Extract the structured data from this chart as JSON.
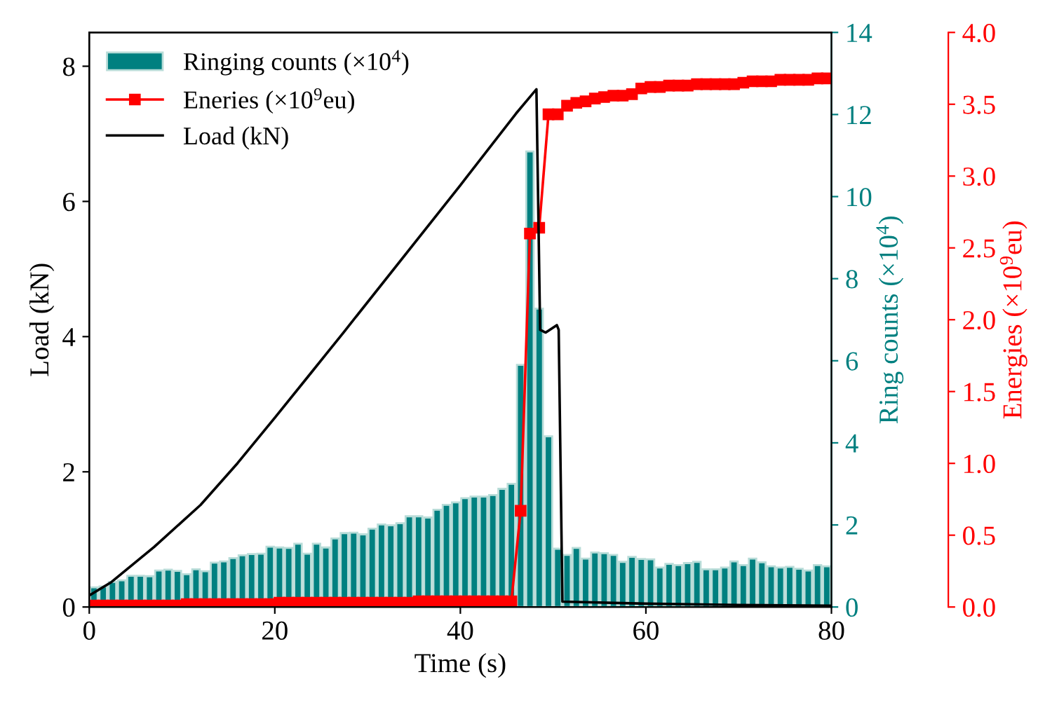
{
  "chart_data": {
    "type": "bar",
    "xlabel": "Time (s)",
    "ylabel": "Load (kN)",
    "y2label": "Ring counts (×10$^{4}$)",
    "y3label": "Energies (×10$^{9}$eu)",
    "xlim": [
      0,
      80
    ],
    "xticks": [
      0,
      20,
      40,
      60,
      80
    ],
    "ylim": [
      0,
      8.5
    ],
    "yticks": [
      0,
      2,
      4,
      6,
      8
    ],
    "y2lim": [
      0,
      14
    ],
    "y2ticks": [
      0,
      2,
      4,
      6,
      8,
      10,
      12,
      14
    ],
    "y3lim": [
      0,
      4
    ],
    "y3ticks": [
      {
        "value": 0,
        "label": "0.0"
      },
      {
        "value": 0.5,
        "label": "0.5"
      },
      {
        "value": 1,
        "label": "1.0"
      },
      {
        "value": 1.5,
        "label": "1.5"
      },
      {
        "value": 2,
        "label": "2.0"
      },
      {
        "value": 2.5,
        "label": "2.5"
      },
      {
        "value": 3,
        "label": "3.0"
      },
      {
        "value": 3.5,
        "label": "3.5"
      },
      {
        "value": 4,
        "label": "4.0"
      }
    ],
    "legend": "top left",
    "grid": false,
    "series": [
      {
        "name": "Ringing counts (×10$^{4}$)",
        "axis": "y2",
        "color": "#008080",
        "x": [
          0.5,
          1.5,
          2.5,
          3.5,
          4.5,
          5.5,
          6.5,
          7.5,
          8.5,
          9.5,
          10.5,
          11.5,
          12.5,
          13.5,
          14.5,
          15.5,
          16.5,
          17.5,
          18.5,
          19.5,
          20.5,
          21.5,
          22.5,
          23.5,
          24.5,
          25.5,
          26.5,
          27.5,
          28.5,
          29.5,
          30.5,
          31.5,
          32.5,
          33.5,
          34.5,
          35.5,
          36.5,
          37.5,
          38.5,
          39.5,
          40.5,
          41.5,
          42.5,
          43.5,
          44.5,
          45.5,
          46.5,
          47.5,
          48.5,
          49.5,
          50.5,
          51.5,
          52.5,
          53.5,
          54.5,
          55.5,
          56.5,
          57.5,
          58.5,
          59.5,
          60.5,
          61.5,
          62.5,
          63.5,
          64.5,
          65.5,
          66.5,
          67.5,
          68.5,
          69.5,
          70.5,
          71.5,
          72.5,
          73.5,
          74.5,
          75.5,
          76.5,
          77.5,
          78.5,
          79.5
        ],
        "values": [
          0.48,
          0.5,
          0.61,
          0.65,
          0.76,
          0.76,
          0.75,
          0.89,
          0.91,
          0.88,
          0.8,
          0.92,
          0.87,
          1.08,
          1.11,
          1.19,
          1.26,
          1.29,
          1.3,
          1.47,
          1.45,
          1.44,
          1.54,
          1.3,
          1.54,
          1.45,
          1.67,
          1.8,
          1.81,
          1.77,
          1.91,
          2.01,
          1.99,
          2.04,
          2.21,
          2.21,
          2.18,
          2.37,
          2.49,
          2.55,
          2.65,
          2.69,
          2.69,
          2.73,
          2.88,
          3.0,
          5.9,
          11.1,
          7.27,
          4.16,
          1.42,
          1.27,
          1.44,
          1.18,
          1.33,
          1.31,
          1.27,
          1.1,
          1.22,
          1.17,
          1.16,
          0.96,
          1.05,
          1.02,
          1.07,
          1.1,
          0.92,
          0.92,
          0.96,
          1.11,
          1.02,
          1.18,
          1.09,
          0.99,
          0.96,
          0.98,
          0.93,
          0.89,
          1.02,
          0.99
        ]
      },
      {
        "name": "Eneries (×10$^{9}$eu)",
        "type": "line",
        "axis": "y3",
        "color": "#ff0000",
        "marker": "square",
        "line_style": "solid",
        "x": [
          0.5,
          1.5,
          2.5,
          3.5,
          4.5,
          5.5,
          6.5,
          7.5,
          8.5,
          9.5,
          10.5,
          11.5,
          12.5,
          13.5,
          14.5,
          15.5,
          16.5,
          17.5,
          18.5,
          19.5,
          20.5,
          21.5,
          22.5,
          23.5,
          24.5,
          25.5,
          26.5,
          27.5,
          28.5,
          29.5,
          30.5,
          31.5,
          32.5,
          33.5,
          34.5,
          35.5,
          36.5,
          37.5,
          38.5,
          39.5,
          40.5,
          41.5,
          42.5,
          43.5,
          44.5,
          45.5,
          46.5,
          47.5,
          48.5,
          49.5,
          50.5,
          51.5,
          52.5,
          53.5,
          54.5,
          55.5,
          56.5,
          57.5,
          58.5,
          59.5,
          60.5,
          61.5,
          62.5,
          63.5,
          64.5,
          65.5,
          66.5,
          67.5,
          68.5,
          69.5,
          70.5,
          71.5,
          72.5,
          73.5,
          74.5,
          75.5,
          76.5,
          77.5,
          78.5,
          79.5
        ],
        "values": [
          0.01,
          0.01,
          0.01,
          0.01,
          0.01,
          0.01,
          0.01,
          0.01,
          0.01,
          0.01,
          0.02,
          0.02,
          0.02,
          0.02,
          0.02,
          0.02,
          0.02,
          0.02,
          0.02,
          0.02,
          0.03,
          0.03,
          0.03,
          0.03,
          0.03,
          0.03,
          0.03,
          0.03,
          0.03,
          0.03,
          0.03,
          0.03,
          0.03,
          0.03,
          0.03,
          0.04,
          0.04,
          0.04,
          0.04,
          0.04,
          0.04,
          0.04,
          0.04,
          0.04,
          0.04,
          0.04,
          0.67,
          2.6,
          2.64,
          3.43,
          3.43,
          3.49,
          3.51,
          3.52,
          3.54,
          3.55,
          3.56,
          3.56,
          3.57,
          3.61,
          3.62,
          3.62,
          3.63,
          3.63,
          3.63,
          3.64,
          3.64,
          3.64,
          3.64,
          3.64,
          3.65,
          3.66,
          3.66,
          3.66,
          3.67,
          3.67,
          3.67,
          3.67,
          3.68,
          3.68
        ]
      },
      {
        "name": "Load (kN)",
        "type": "line",
        "axis": "y",
        "color": "#000000",
        "marker": "none",
        "line_style": "solid",
        "x": [
          0,
          2.4,
          7,
          12,
          16,
          20,
          24,
          27.4,
          40,
          46,
          48.2,
          48.6,
          49.2,
          50.4,
          50.6,
          51,
          60,
          70,
          80
        ],
        "values": [
          0.17,
          0.37,
          0.89,
          1.51,
          2.13,
          2.8,
          3.48,
          4.06,
          6.24,
          7.3,
          7.66,
          4.1,
          4.06,
          4.17,
          4.1,
          0.08,
          0.05,
          0.03,
          0.02
        ]
      }
    ]
  }
}
